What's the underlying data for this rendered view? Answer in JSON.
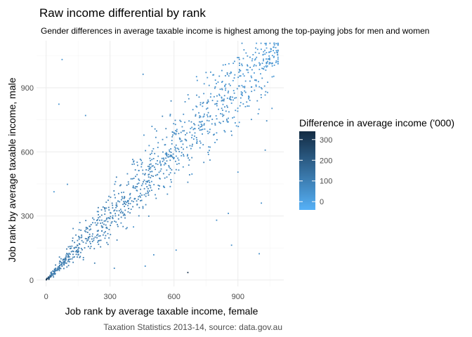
{
  "chart_data": {
    "type": "scatter",
    "title": "Raw income differential by rank",
    "subtitle": "Gender differences in average taxable income is highest among the top-paying jobs for men and women",
    "xlabel": "Job rank by average taxable income, female",
    "ylabel": "Job rank by average taxable income, male",
    "caption": "Taxation Statistics 2013-14, source: data.gov.au",
    "xlim": [
      -45,
      1115
    ],
    "ylim": [
      -30,
      1120
    ],
    "x_ticks": [
      0,
      300,
      600,
      900
    ],
    "y_ticks": [
      0,
      300,
      600,
      900
    ],
    "x_tick_labels": [
      "0",
      "300",
      "600",
      "900"
    ],
    "y_tick_labels": [
      "0",
      "300",
      "600",
      "900"
    ],
    "grid": true,
    "theme": "minimal",
    "n_points": 1090,
    "legend": {
      "title": "Difference in average income ('000)",
      "placement": "right",
      "type": "colorbar",
      "range": [
        -40,
        340
      ],
      "ticks": [
        0,
        100,
        200,
        300
      ],
      "tick_labels": [
        "0",
        "100",
        "200",
        "300"
      ],
      "color_low": "#56B1F7",
      "color_high": "#132B43"
    },
    "outliers": [
      {
        "x": 75,
        "y": 1032,
        "diff": 40
      },
      {
        "x": 60,
        "y": 823,
        "diff": 40
      },
      {
        "x": 455,
        "y": 963,
        "diff": 60
      },
      {
        "x": 37,
        "y": 413,
        "diff": 40
      },
      {
        "x": 100,
        "y": 448,
        "diff": 60
      },
      {
        "x": 185,
        "y": 770,
        "diff": 60
      },
      {
        "x": 665,
        "y": 35,
        "diff": 320
      },
      {
        "x": 610,
        "y": 140,
        "diff": 60
      },
      {
        "x": 505,
        "y": 118,
        "diff": 60
      },
      {
        "x": 465,
        "y": 65,
        "diff": 60
      },
      {
        "x": 320,
        "y": 55,
        "diff": 80
      },
      {
        "x": 870,
        "y": 163,
        "diff": 60
      },
      {
        "x": 1000,
        "y": 123,
        "diff": 60
      },
      {
        "x": 800,
        "y": 280,
        "diff": 60
      },
      {
        "x": 855,
        "y": 312,
        "diff": 60
      },
      {
        "x": 1010,
        "y": 360,
        "diff": 60
      },
      {
        "x": 1035,
        "y": 745,
        "diff": 80
      },
      {
        "x": 1028,
        "y": 608,
        "diff": 80
      },
      {
        "x": 900,
        "y": 505,
        "diff": 60
      },
      {
        "x": 245,
        "y": 320,
        "diff": 60
      }
    ]
  }
}
